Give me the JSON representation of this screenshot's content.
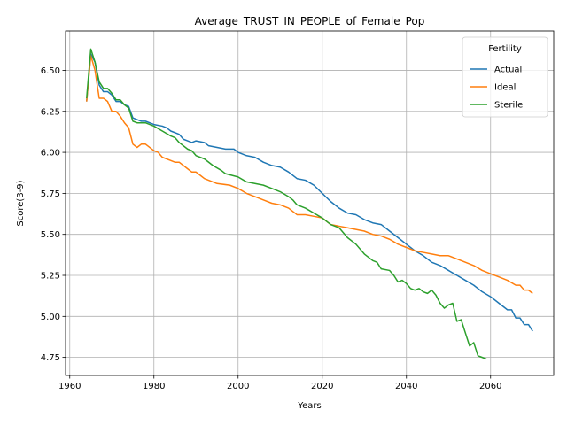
{
  "chart_data": {
    "type": "line",
    "title": "Average_TRUST_IN_PEOPLE_of_Female_Pop",
    "xlabel": "Years",
    "ylabel": "Score(3-9)",
    "xlim": [
      1959,
      2075
    ],
    "ylim": [
      4.64,
      6.74
    ],
    "xticks": [
      1960,
      1980,
      2000,
      2020,
      2040,
      2060
    ],
    "yticks": [
      4.75,
      5.0,
      5.25,
      5.5,
      5.75,
      6.0,
      6.25,
      6.5
    ],
    "xtick_labels": [
      "1960",
      "1980",
      "2000",
      "2020",
      "2040",
      "2060"
    ],
    "ytick_labels": [
      "4.75",
      "5.00",
      "5.25",
      "5.50",
      "5.75",
      "6.00",
      "6.25",
      "6.50"
    ],
    "grid": true,
    "legend": {
      "title": "Fertility",
      "position": "top-right"
    },
    "series": [
      {
        "name": "Actual",
        "color": "#1f77b4",
        "points": [
          [
            1964,
            6.31
          ],
          [
            1965,
            6.6
          ],
          [
            1966,
            6.55
          ],
          [
            1967,
            6.41
          ],
          [
            1968,
            6.37
          ],
          [
            1969,
            6.37
          ],
          [
            1970,
            6.35
          ],
          [
            1971,
            6.31
          ],
          [
            1972,
            6.31
          ],
          [
            1973,
            6.29
          ],
          [
            1974,
            6.28
          ],
          [
            1975,
            6.21
          ],
          [
            1976,
            6.2
          ],
          [
            1977,
            6.19
          ],
          [
            1978,
            6.19
          ],
          [
            1980,
            6.17
          ],
          [
            1982,
            6.16
          ],
          [
            1983,
            6.15
          ],
          [
            1984,
            6.13
          ],
          [
            1986,
            6.11
          ],
          [
            1987,
            6.08
          ],
          [
            1988,
            6.07
          ],
          [
            1989,
            6.06
          ],
          [
            1990,
            6.07
          ],
          [
            1992,
            6.06
          ],
          [
            1993,
            6.04
          ],
          [
            1995,
            6.03
          ],
          [
            1997,
            6.02
          ],
          [
            1999,
            6.02
          ],
          [
            2000,
            6.0
          ],
          [
            2002,
            5.98
          ],
          [
            2004,
            5.97
          ],
          [
            2006,
            5.94
          ],
          [
            2008,
            5.92
          ],
          [
            2010,
            5.91
          ],
          [
            2012,
            5.88
          ],
          [
            2014,
            5.84
          ],
          [
            2016,
            5.83
          ],
          [
            2018,
            5.8
          ],
          [
            2020,
            5.75
          ],
          [
            2022,
            5.7
          ],
          [
            2024,
            5.66
          ],
          [
            2026,
            5.63
          ],
          [
            2028,
            5.62
          ],
          [
            2030,
            5.59
          ],
          [
            2032,
            5.57
          ],
          [
            2034,
            5.56
          ],
          [
            2036,
            5.52
          ],
          [
            2038,
            5.48
          ],
          [
            2040,
            5.44
          ],
          [
            2042,
            5.4
          ],
          [
            2044,
            5.37
          ],
          [
            2046,
            5.33
          ],
          [
            2048,
            5.31
          ],
          [
            2050,
            5.28
          ],
          [
            2052,
            5.25
          ],
          [
            2054,
            5.22
          ],
          [
            2056,
            5.19
          ],
          [
            2058,
            5.15
          ],
          [
            2060,
            5.12
          ],
          [
            2062,
            5.08
          ],
          [
            2064,
            5.04
          ],
          [
            2065,
            5.04
          ],
          [
            2066,
            4.99
          ],
          [
            2067,
            4.99
          ],
          [
            2068,
            4.95
          ],
          [
            2069,
            4.95
          ],
          [
            2070,
            4.91
          ]
        ]
      },
      {
        "name": "Ideal",
        "color": "#ff7f0e",
        "points": [
          [
            1964,
            6.31
          ],
          [
            1965,
            6.59
          ],
          [
            1966,
            6.5
          ],
          [
            1967,
            6.33
          ],
          [
            1968,
            6.33
          ],
          [
            1969,
            6.31
          ],
          [
            1970,
            6.25
          ],
          [
            1971,
            6.25
          ],
          [
            1972,
            6.22
          ],
          [
            1973,
            6.18
          ],
          [
            1974,
            6.15
          ],
          [
            1975,
            6.05
          ],
          [
            1976,
            6.03
          ],
          [
            1977,
            6.05
          ],
          [
            1978,
            6.05
          ],
          [
            1980,
            6.01
          ],
          [
            1981,
            6.0
          ],
          [
            1982,
            5.97
          ],
          [
            1984,
            5.95
          ],
          [
            1985,
            5.94
          ],
          [
            1986,
            5.94
          ],
          [
            1988,
            5.9
          ],
          [
            1989,
            5.88
          ],
          [
            1990,
            5.88
          ],
          [
            1991,
            5.86
          ],
          [
            1992,
            5.84
          ],
          [
            1994,
            5.82
          ],
          [
            1995,
            5.81
          ],
          [
            1998,
            5.8
          ],
          [
            2000,
            5.78
          ],
          [
            2002,
            5.75
          ],
          [
            2004,
            5.73
          ],
          [
            2006,
            5.71
          ],
          [
            2008,
            5.69
          ],
          [
            2010,
            5.68
          ],
          [
            2012,
            5.66
          ],
          [
            2014,
            5.62
          ],
          [
            2015,
            5.62
          ],
          [
            2016,
            5.62
          ],
          [
            2018,
            5.61
          ],
          [
            2020,
            5.6
          ],
          [
            2022,
            5.56
          ],
          [
            2024,
            5.55
          ],
          [
            2026,
            5.54
          ],
          [
            2028,
            5.53
          ],
          [
            2030,
            5.52
          ],
          [
            2032,
            5.5
          ],
          [
            2034,
            5.49
          ],
          [
            2036,
            5.47
          ],
          [
            2038,
            5.44
          ],
          [
            2040,
            5.42
          ],
          [
            2042,
            5.4
          ],
          [
            2044,
            5.39
          ],
          [
            2046,
            5.38
          ],
          [
            2048,
            5.37
          ],
          [
            2050,
            5.37
          ],
          [
            2052,
            5.35
          ],
          [
            2054,
            5.33
          ],
          [
            2056,
            5.31
          ],
          [
            2058,
            5.28
          ],
          [
            2060,
            5.26
          ],
          [
            2062,
            5.24
          ],
          [
            2064,
            5.22
          ],
          [
            2066,
            5.19
          ],
          [
            2067,
            5.19
          ],
          [
            2068,
            5.16
          ],
          [
            2069,
            5.16
          ],
          [
            2070,
            5.14
          ]
        ]
      },
      {
        "name": "Sterile",
        "color": "#2ca02c",
        "points": [
          [
            1964,
            6.33
          ],
          [
            1965,
            6.63
          ],
          [
            1966,
            6.55
          ],
          [
            1967,
            6.43
          ],
          [
            1968,
            6.39
          ],
          [
            1969,
            6.39
          ],
          [
            1970,
            6.36
          ],
          [
            1971,
            6.32
          ],
          [
            1972,
            6.32
          ],
          [
            1973,
            6.29
          ],
          [
            1974,
            6.27
          ],
          [
            1975,
            6.19
          ],
          [
            1976,
            6.18
          ],
          [
            1977,
            6.18
          ],
          [
            1978,
            6.18
          ],
          [
            1979,
            6.17
          ],
          [
            1980,
            6.16
          ],
          [
            1982,
            6.13
          ],
          [
            1984,
            6.1
          ],
          [
            1985,
            6.09
          ],
          [
            1986,
            6.06
          ],
          [
            1988,
            6.02
          ],
          [
            1989,
            6.01
          ],
          [
            1990,
            5.98
          ],
          [
            1992,
            5.96
          ],
          [
            1994,
            5.92
          ],
          [
            1996,
            5.89
          ],
          [
            1997,
            5.87
          ],
          [
            2000,
            5.85
          ],
          [
            2002,
            5.82
          ],
          [
            2004,
            5.81
          ],
          [
            2006,
            5.8
          ],
          [
            2008,
            5.78
          ],
          [
            2010,
            5.76
          ],
          [
            2012,
            5.73
          ],
          [
            2013,
            5.71
          ],
          [
            2014,
            5.68
          ],
          [
            2016,
            5.66
          ],
          [
            2018,
            5.63
          ],
          [
            2020,
            5.6
          ],
          [
            2022,
            5.56
          ],
          [
            2024,
            5.54
          ],
          [
            2026,
            5.48
          ],
          [
            2028,
            5.44
          ],
          [
            2030,
            5.38
          ],
          [
            2032,
            5.34
          ],
          [
            2033,
            5.33
          ],
          [
            2034,
            5.29
          ],
          [
            2036,
            5.28
          ],
          [
            2037,
            5.25
          ],
          [
            2038,
            5.21
          ],
          [
            2039,
            5.22
          ],
          [
            2040,
            5.2
          ],
          [
            2041,
            5.17
          ],
          [
            2042,
            5.16
          ],
          [
            2043,
            5.17
          ],
          [
            2044,
            5.15
          ],
          [
            2045,
            5.14
          ],
          [
            2046,
            5.16
          ],
          [
            2047,
            5.13
          ],
          [
            2048,
            5.08
          ],
          [
            2049,
            5.05
          ],
          [
            2050,
            5.07
          ],
          [
            2051,
            5.08
          ],
          [
            2052,
            4.97
          ],
          [
            2053,
            4.98
          ],
          [
            2054,
            4.9
          ],
          [
            2055,
            4.82
          ],
          [
            2056,
            4.84
          ],
          [
            2057,
            4.76
          ],
          [
            2058,
            4.75
          ],
          [
            2059,
            4.74
          ]
        ]
      }
    ]
  }
}
